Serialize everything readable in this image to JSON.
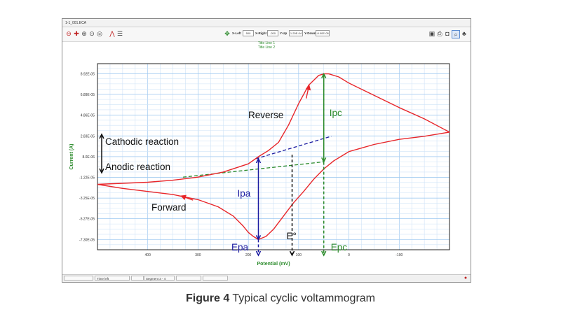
{
  "window": {
    "file_title": "1-1_001.ECA",
    "toolbar": {
      "x_left_label": "X-Left",
      "x_left_value": "500",
      "x_right_label": "X-Right",
      "x_right_value": "-200",
      "y_up_label": "Y-Up",
      "y_up_value": "1.20E-04",
      "y_down_label": "Y-Down",
      "y_down_value": "-8.00E-05"
    },
    "title_line_1": "Title Line 1",
    "title_line_2": "Title Line 2",
    "statusbar": {
      "time_left_label": "Time left",
      "segment_label": "Segment",
      "segment_value": "3 - 4"
    }
  },
  "chart_data": {
    "type": "line",
    "xlabel": "Potential (mV)",
    "ylabel": "Current (A)",
    "xlim": [
      500,
      -200
    ],
    "ylim": [
      -8.3e-05,
      9.9e-05
    ],
    "x_ticks": [
      400,
      300,
      200,
      100,
      0,
      -100
    ],
    "x_tick_labels": [
      "400",
      "300",
      "200",
      "100",
      "0",
      "-100"
    ],
    "y_ticks": [
      -7.3e-05,
      -5.27e-05,
      -3.25e-05,
      -1.22e-05,
      8e-06,
      2.83e-05,
      4.86e-05,
      6.89e-05,
      8.92e-05
    ],
    "y_tick_labels": [
      "-7.30E-05",
      "-5.27E-05",
      "-3.25E-05",
      "-1.22E-05",
      "8.0E-06",
      "2.83E-05",
      "4.86E-05",
      "6.89E-05",
      "8.92E-05"
    ],
    "grid": true,
    "series": [
      {
        "color": "#e8262a",
        "x": [
          500,
          450,
          400,
          350,
          300,
          260,
          230,
          210,
          200,
          190,
          180,
          165,
          150,
          130,
          110,
          90,
          70,
          50,
          30,
          10,
          0,
          -50,
          -100,
          -150,
          -200,
          -150,
          -100,
          -50,
          0,
          20,
          40,
          50,
          60,
          80,
          100,
          120,
          140,
          160,
          180,
          200,
          250,
          300,
          350,
          400,
          450,
          500
        ],
        "y": [
          -1.9e-05,
          -2.3e-05,
          -2.6e-05,
          -2.9e-05,
          -3.4e-05,
          -4.1e-05,
          -5e-05,
          -6e-05,
          -6.6e-05,
          -7e-05,
          -7.3e-05,
          -7e-05,
          -6.3e-05,
          -5e-05,
          -3.7e-05,
          -2.6e-05,
          -1.4e-05,
          -4e-06,
          4e-06,
          1e-05,
          1.3e-05,
          2e-05,
          2.5e-05,
          2.8e-05,
          3.2e-05,
          4.5e-05,
          5.6e-05,
          6.8e-05,
          8e-05,
          8.6e-05,
          8.9e-05,
          8.9e-05,
          8.75e-05,
          7.8e-05,
          6e-05,
          3.9e-05,
          2.2e-05,
          1.4e-05,
          8e-06,
          1e-06,
          -7e-06,
          -1.2e-05,
          -1.5e-05,
          -1.7e-05,
          -1.8e-05,
          -1.9e-05
        ]
      }
    ],
    "baselines": [
      {
        "color": "#1a1aa0",
        "style": "dashed",
        "x": [
          185,
          35
        ],
        "y": [
          6e-06,
          2.8e-05
        ]
      },
      {
        "color": "#2a8a2a",
        "style": "dashed",
        "x": [
          330,
          50
        ],
        "y": [
          -1.2e-05,
          3e-06
        ]
      }
    ],
    "arrows": [
      {
        "label": "Ipa",
        "color": "#1a1aa0",
        "x": 180,
        "y_from": 6e-06,
        "y_to": -7.3e-05
      },
      {
        "label": "Ipc",
        "color": "#2a8a2a",
        "x": 50,
        "y_from": 8.9e-05,
        "y_to": 3e-06
      }
    ],
    "annotations": {
      "reverse": "Reverse",
      "forward": "Forward",
      "cathodic": "Cathodic reaction",
      "anodic": "Anodic reaction",
      "ipa": "Ipa",
      "ipc": "Ipc",
      "epa": "Epa",
      "epc": "Epc",
      "e0": "E°"
    }
  },
  "caption": {
    "label": "Figure 4",
    "text": "Typical cyclic voltammogram"
  }
}
